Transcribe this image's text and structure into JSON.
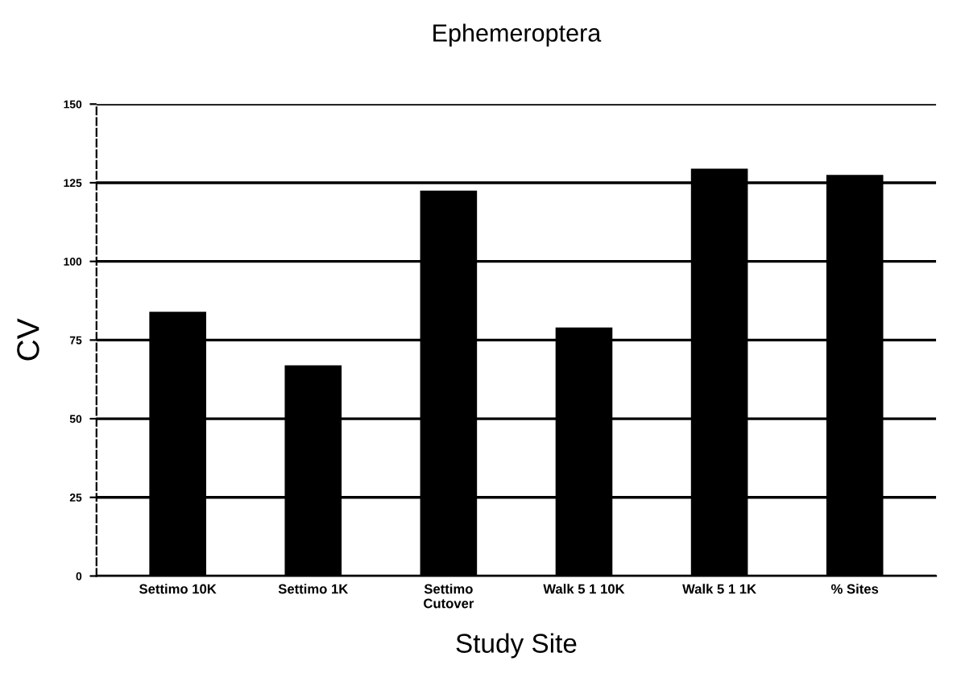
{
  "chart_data": {
    "type": "bar",
    "title": "Ephemeroptera",
    "xlabel": "Study Site",
    "ylabel": "CV",
    "categories": [
      "Settimo 10K",
      "Settimo 1K",
      "Settimo\nCutover",
      "Walk 5 1 10K",
      "Walk 5 1 1K",
      "% Sites"
    ],
    "values": [
      84,
      67,
      122.5,
      79,
      129.5,
      127.5
    ],
    "color": "#000000",
    "ylim": [
      0,
      150
    ],
    "yticks": [
      0,
      25,
      50,
      75,
      100,
      125,
      150
    ],
    "grid": "y",
    "legend": false
  }
}
